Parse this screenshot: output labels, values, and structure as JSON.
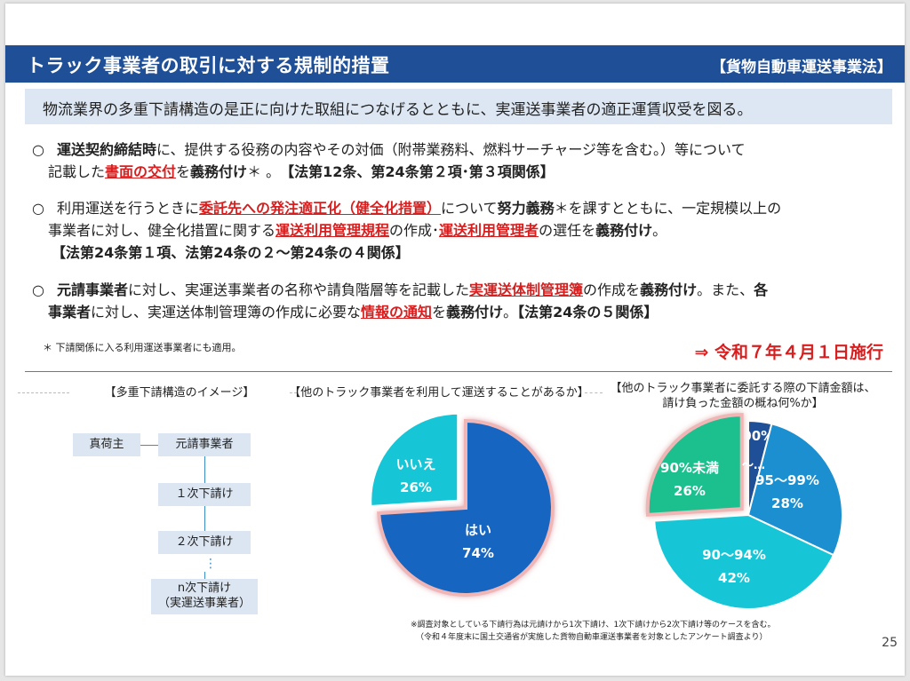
{
  "header": {
    "title": "トラック事業者の取引に対する規制的措置",
    "law": "【貨物自動車運送事業法】"
  },
  "purpose": "物流業界の多重下請構造の是正に向けた取組につなげるとともに、実運送事業者の適正運賃収受を図る。",
  "items": [
    {
      "bullet": "○",
      "line1": [
        {
          "t": "運送契約締結時",
          "s": "b"
        },
        {
          "t": "に、提供する役務の内容やその対価（附帯業務料、燃料サーチャージ等を含む。）等について"
        }
      ],
      "line2": [
        {
          "t": "記載した"
        },
        {
          "t": "書面の交付",
          "s": "red"
        },
        {
          "t": "を"
        },
        {
          "t": "義務付け",
          "s": "b"
        },
        {
          "t": "＊ 。　"
        },
        {
          "t": "【法第12条、第24条第２項･第３項関係】",
          "s": "b"
        }
      ]
    },
    {
      "bullet": "○",
      "line1": [
        {
          "t": "利用運送を行うときに"
        },
        {
          "t": "委託先への発注適正化（健全化措置）",
          "s": "red"
        },
        {
          "t": "について"
        },
        {
          "t": "努力義務",
          "s": "b"
        },
        {
          "t": "＊を課すとともに、一定規模以上の"
        }
      ],
      "line2": [
        {
          "t": "事業者に対し、健全化措置に関する"
        },
        {
          "t": "運送利用管理規程",
          "s": "red"
        },
        {
          "t": "の作成･"
        },
        {
          "t": "運送利用管理者",
          "s": "red"
        },
        {
          "t": "の選任を"
        },
        {
          "t": "義務付け",
          "s": "b"
        },
        {
          "t": "。"
        }
      ],
      "line3": [
        {
          "t": "【法第24条第１項、法第24条の２～第24条の４関係】",
          "s": "b"
        }
      ]
    },
    {
      "bullet": "○",
      "line1": [
        {
          "t": "元請事業者",
          "s": "b"
        },
        {
          "t": "に対し、実運送事業者の名称や請負階層等を記載した"
        },
        {
          "t": "実運送体制管理簿",
          "s": "red"
        },
        {
          "t": "の作成を"
        },
        {
          "t": "義務付け",
          "s": "b"
        },
        {
          "t": "。また、"
        },
        {
          "t": "各",
          "s": "b"
        }
      ],
      "line2": [
        {
          "t": "事業者",
          "s": "b"
        },
        {
          "t": "に対し、実運送体制管理簿の作成に必要な"
        },
        {
          "t": "情報の通知",
          "s": "red"
        },
        {
          "t": "を"
        },
        {
          "t": "義務付け",
          "s": "b"
        },
        {
          "t": "。"
        },
        {
          "t": "【法第24条の５関係】",
          "s": "b"
        }
      ]
    }
  ],
  "note": "＊ 下請関係に入る利用運送事業者にも適用。",
  "enactment": "⇒ 令和７年４月１日施行",
  "sections": {
    "structure_title": "【多重下請構造のイメージ】",
    "pie1_title": "【他のトラック事業者を利用して運送することがあるか】",
    "pie2_title_1": "【他のトラック事業者に委託する際の下請金額は、",
    "pie2_title_2": "請け負った金額の概ね何%か】"
  },
  "structure": {
    "shipper": "真荷主",
    "prime": "元請事業者",
    "sub1": "１次下請け",
    "sub2": "２次下請け",
    "dots": "⋮",
    "subn_1": "n次下請け",
    "subn_2": "（実運送事業者）"
  },
  "chart_data": [
    {
      "type": "pie",
      "slices": [
        {
          "label": "はい",
          "value": 74,
          "display": "74%",
          "color": "#1565c0"
        },
        {
          "label": "いいえ",
          "value": 26,
          "display": "26%",
          "color": "#16c6d6"
        }
      ]
    },
    {
      "type": "pie",
      "slices": [
        {
          "label": "100%",
          "value": 4,
          "display": "",
          "color": "#1f4f97"
        },
        {
          "label": "95～99%",
          "value": 28,
          "display": "28%",
          "color": "#1b8fd0"
        },
        {
          "label": "90～94%",
          "value": 42,
          "display": "42%",
          "color": "#16c6d6"
        },
        {
          "label": "90%未満",
          "value": 26,
          "display": "26%",
          "color": "#1bc08e"
        }
      ]
    }
  ],
  "pie2_extra": "～…",
  "footnote_1": "※調査対象としている下請行為は元請けから1次下請け、1次下請けから2次下請け等のケースを含む。",
  "footnote_2": "（令和４年度末に国土交通省が実施した貨物自動車運送事業者を対象としたアンケート調査より）",
  "page_number": "25"
}
